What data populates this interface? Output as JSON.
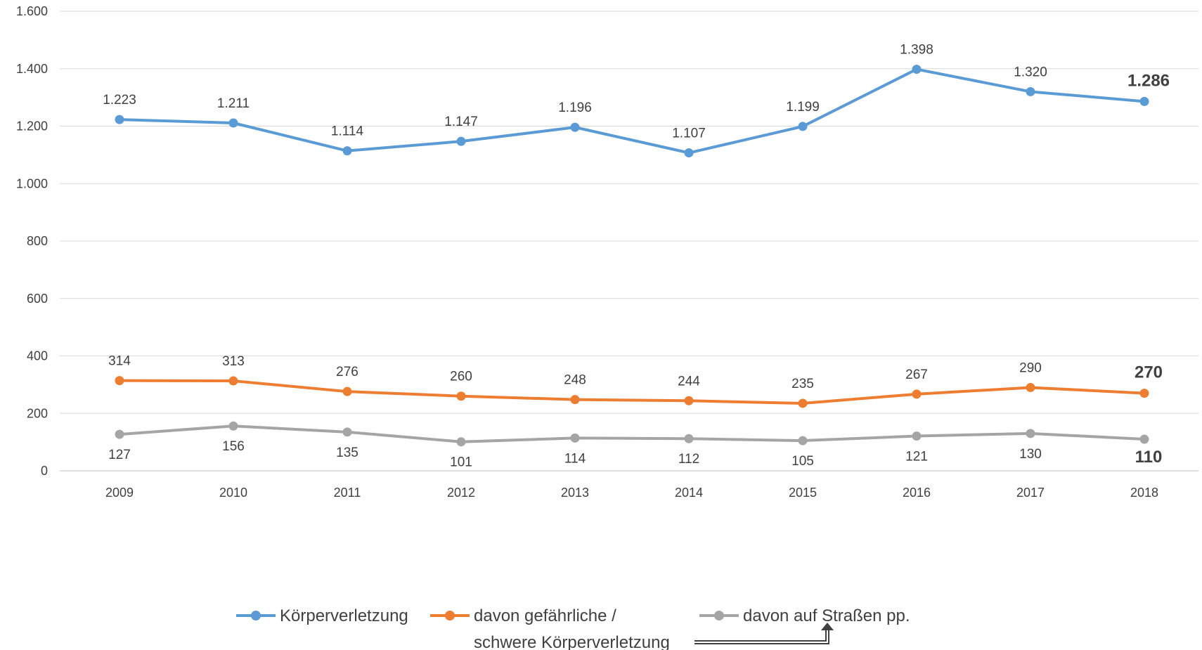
{
  "chart_data": {
    "type": "line",
    "categories": [
      "2009",
      "2010",
      "2011",
      "2012",
      "2013",
      "2014",
      "2015",
      "2016",
      "2017",
      "2018"
    ],
    "ylim": [
      0,
      1600
    ],
    "yticks": [
      {
        "value": 0,
        "label": "0"
      },
      {
        "value": 200,
        "label": "200"
      },
      {
        "value": 400,
        "label": "400"
      },
      {
        "value": 600,
        "label": "600"
      },
      {
        "value": 800,
        "label": "800"
      },
      {
        "value": 1000,
        "label": "1.000"
      },
      {
        "value": 1200,
        "label": "1.200"
      },
      {
        "value": 1400,
        "label": "1.400"
      },
      {
        "value": 1600,
        "label": "1.600"
      }
    ],
    "grid": true,
    "legend_position": "bottom",
    "series": [
      {
        "name": "Körperverletzung",
        "color": "#5B9BD5",
        "label_position": "above",
        "values": [
          1223,
          1211,
          1114,
          1147,
          1196,
          1107,
          1199,
          1398,
          1320,
          1286
        ],
        "labels": [
          "1.223",
          "1.211",
          "1.114",
          "1.147",
          "1.196",
          "1.107",
          "1.199",
          "1.398",
          "1.320",
          "1.286"
        ]
      },
      {
        "name": "davon gefährliche / schwere Körperverletzung",
        "legend_lines": [
          "davon gefährliche /",
          "schwere Körperverletzung"
        ],
        "color": "#ED7D31",
        "label_position": "above",
        "values": [
          314,
          313,
          276,
          260,
          248,
          244,
          235,
          267,
          290,
          270
        ],
        "labels": [
          "314",
          "313",
          "276",
          "260",
          "248",
          "244",
          "235",
          "267",
          "290",
          "270"
        ]
      },
      {
        "name": "davon auf Straßen pp.",
        "color": "#A5A5A5",
        "label_position": "below",
        "values": [
          127,
          156,
          135,
          101,
          114,
          112,
          105,
          121,
          130,
          110
        ],
        "labels": [
          "127",
          "156",
          "135",
          "101",
          "114",
          "112",
          "105",
          "121",
          "130",
          "110"
        ]
      }
    ],
    "bold_last_label": true
  }
}
